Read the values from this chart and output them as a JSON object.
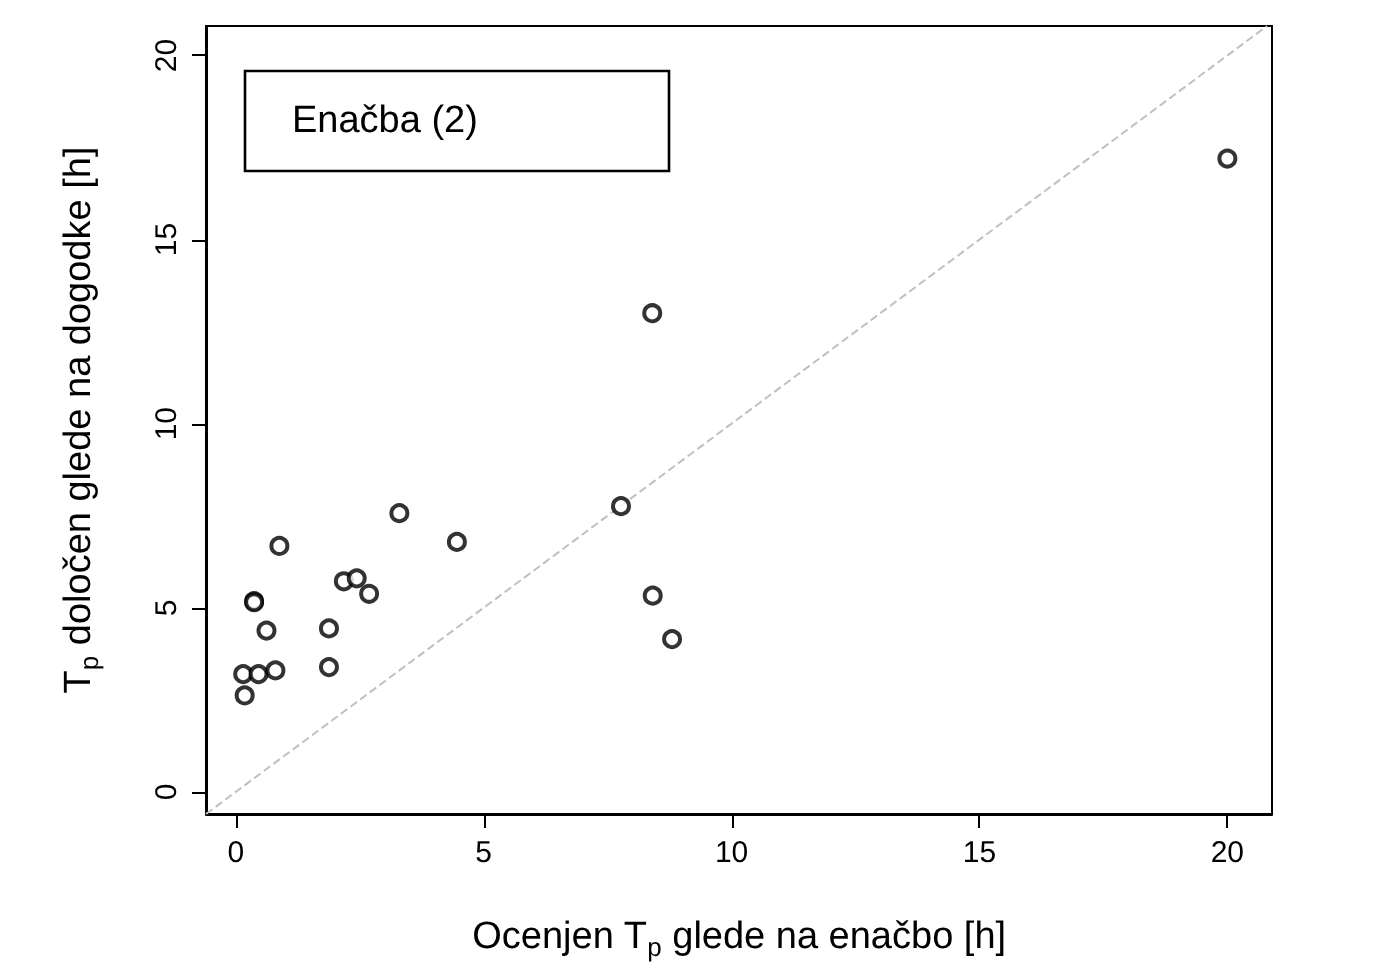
{
  "chart_data": {
    "type": "scatter",
    "xlabel": "Ocenjen T$_{p}$ glede na enačbo [h]",
    "ylabel": "T$_{p}$ določen glede na dogodke [h]",
    "annotations": [
      "Enačba (2)"
    ],
    "xlim": [
      -0.6,
      20.9
    ],
    "ylim": [
      -0.6,
      20.8
    ],
    "xticks": [
      0,
      5,
      10,
      15,
      20
    ],
    "yticks": [
      0,
      5,
      10,
      15,
      20
    ],
    "grid": false,
    "marker": "circle",
    "series": [
      {
        "color": "#000000",
        "x": [
          3.3,
          0.88,
          2.18,
          2.44,
          2.69,
          0.37,
          0.37,
          0.62,
          1.88,
          0.15,
          0.46,
          0.8,
          0.18,
          1.88,
          4.46,
          7.77,
          8.4,
          8.41,
          8.8,
          20.0
        ],
        "values": [
          7.57,
          6.68,
          5.72,
          5.8,
          5.38,
          5.18,
          5.15,
          4.38,
          4.44,
          3.2,
          3.2,
          3.3,
          2.62,
          3.39,
          6.79,
          7.76,
          13.0,
          5.33,
          4.15,
          17.2
        ]
      },
      {
        "type": "line",
        "color": "#c0c0c0",
        "line_style": "dashed",
        "marker": "none",
        "x": [
          -0.6,
          20.8
        ],
        "values": [
          -0.6,
          20.8
        ]
      }
    ]
  }
}
